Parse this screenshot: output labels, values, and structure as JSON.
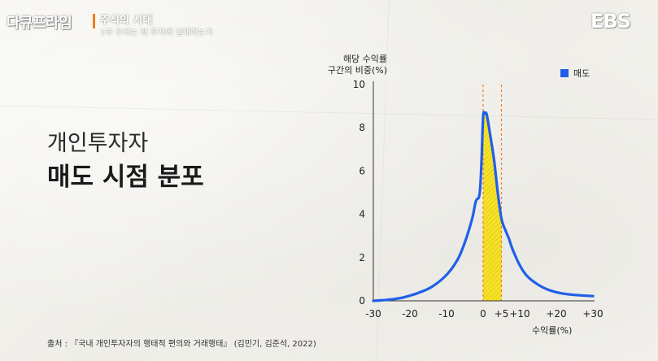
{
  "header": {
    "brand": "다큐프라임",
    "series_title": "주식의 시대",
    "series_subtitle": "1부 우리는 왜 투자에 실패하는가",
    "channel": "EBS"
  },
  "slide": {
    "heading_line1": "개인투자자",
    "heading_line2": "매도 시점 분포"
  },
  "source": "출처 : 『국내 개인투자자의 행태적 편의와 거래행태』 (김민기, 김준석, 2022)",
  "colors": {
    "series": "#1f5fe8",
    "highlight": "#f5e21f",
    "marker_line": "#f07d1a"
  },
  "chart_data": {
    "type": "line",
    "ylabel_line1": "해당 수익률",
    "ylabel_line2": "구간의 비중(%)",
    "xlabel": "수익률(%)",
    "xlim": [
      -30,
      30
    ],
    "ylim": [
      0,
      10
    ],
    "xticks": [
      "-30",
      "-20",
      "-10",
      "0",
      "+5",
      "+10",
      "+20",
      "+30"
    ],
    "xtick_values": [
      -30,
      -20,
      -10,
      0,
      5,
      10,
      20,
      30
    ],
    "yticks": [
      "0",
      "2",
      "4",
      "6",
      "8",
      "10"
    ],
    "ytick_values": [
      0,
      2,
      4,
      6,
      8,
      10
    ],
    "legend": [
      {
        "label": "매도"
      }
    ],
    "legend_position": "top-right",
    "highlight_range": [
      0,
      5
    ],
    "series": [
      {
        "x": [
          -30,
          -26,
          -22,
          -18,
          -14,
          -10,
          -7,
          -5,
          -3,
          -2,
          -1,
          -0.5,
          0,
          0.5,
          1,
          2,
          3,
          4,
          5,
          6,
          7,
          8,
          10,
          12,
          15,
          18,
          22,
          26,
          30
        ],
        "values": [
          0.0,
          0.05,
          0.15,
          0.35,
          0.65,
          1.2,
          1.9,
          2.7,
          3.8,
          4.6,
          4.9,
          6.2,
          8.5,
          8.65,
          8.6,
          7.6,
          6.5,
          5.0,
          3.8,
          3.3,
          2.9,
          2.4,
          1.65,
          1.15,
          0.75,
          0.5,
          0.33,
          0.26,
          0.22
        ]
      }
    ]
  }
}
